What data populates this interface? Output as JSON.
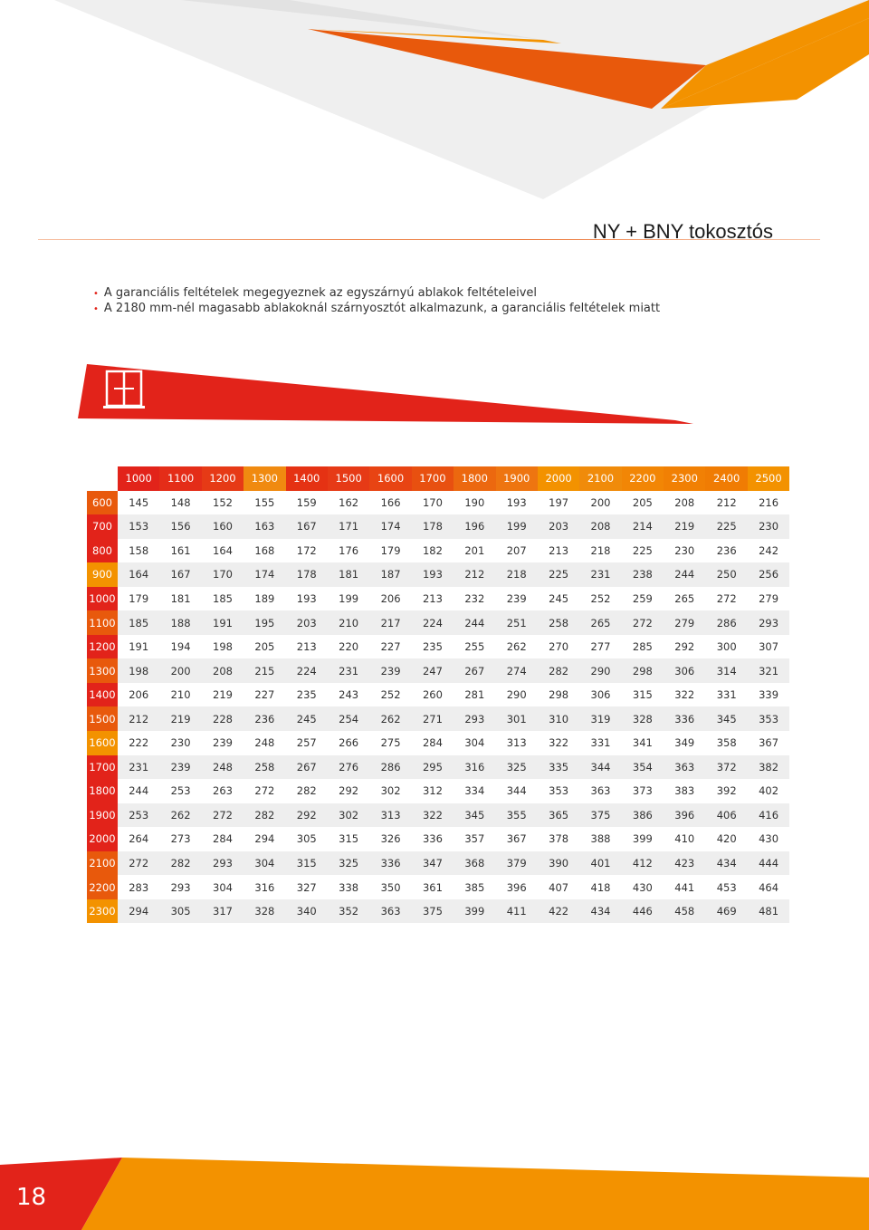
{
  "header": {
    "title": "NY + BNY tokosztós"
  },
  "notes": [
    "A garanciális feltételek megegyeznek az egyszárnyú ablakok feltételeivel",
    "A 2180 mm-nél magasabb ablakoknál szárnyosztót alkalmazunk, a garanciális feltételek miatt"
  ],
  "banner": {
    "icon": "window-sash-divider-icon"
  },
  "colors": {
    "orange": "#f39200",
    "dark_orange": "#e8590c",
    "red": "#e2231a",
    "light_gray": "#eeeeee"
  },
  "table": {
    "col_headers": [
      "1000",
      "1100",
      "1200",
      "1300",
      "1400",
      "1500",
      "1600",
      "1700",
      "1800",
      "1900",
      "2000",
      "2100",
      "2200",
      "2300",
      "2400",
      "2500"
    ],
    "rows": [
      {
        "h": "600",
        "v": [
          "145",
          "148",
          "152",
          "155",
          "159",
          "162",
          "166",
          "170",
          "190",
          "193",
          "197",
          "200",
          "205",
          "208",
          "212",
          "216"
        ]
      },
      {
        "h": "700",
        "v": [
          "153",
          "156",
          "160",
          "163",
          "167",
          "171",
          "174",
          "178",
          "196",
          "199",
          "203",
          "208",
          "214",
          "219",
          "225",
          "230"
        ]
      },
      {
        "h": "800",
        "v": [
          "158",
          "161",
          "164",
          "168",
          "172",
          "176",
          "179",
          "182",
          "201",
          "207",
          "213",
          "218",
          "225",
          "230",
          "236",
          "242"
        ]
      },
      {
        "h": "900",
        "v": [
          "164",
          "167",
          "170",
          "174",
          "178",
          "181",
          "187",
          "193",
          "212",
          "218",
          "225",
          "231",
          "238",
          "244",
          "250",
          "256"
        ]
      },
      {
        "h": "1000",
        "v": [
          "179",
          "181",
          "185",
          "189",
          "193",
          "199",
          "206",
          "213",
          "232",
          "239",
          "245",
          "252",
          "259",
          "265",
          "272",
          "279"
        ]
      },
      {
        "h": "1100",
        "v": [
          "185",
          "188",
          "191",
          "195",
          "203",
          "210",
          "217",
          "224",
          "244",
          "251",
          "258",
          "265",
          "272",
          "279",
          "286",
          "293"
        ]
      },
      {
        "h": "1200",
        "v": [
          "191",
          "194",
          "198",
          "205",
          "213",
          "220",
          "227",
          "235",
          "255",
          "262",
          "270",
          "277",
          "285",
          "292",
          "300",
          "307"
        ]
      },
      {
        "h": "1300",
        "v": [
          "198",
          "200",
          "208",
          "215",
          "224",
          "231",
          "239",
          "247",
          "267",
          "274",
          "282",
          "290",
          "298",
          "306",
          "314",
          "321"
        ]
      },
      {
        "h": "1400",
        "v": [
          "206",
          "210",
          "219",
          "227",
          "235",
          "243",
          "252",
          "260",
          "281",
          "290",
          "298",
          "306",
          "315",
          "322",
          "331",
          "339"
        ]
      },
      {
        "h": "1500",
        "v": [
          "212",
          "219",
          "228",
          "236",
          "245",
          "254",
          "262",
          "271",
          "293",
          "301",
          "310",
          "319",
          "328",
          "336",
          "345",
          "353"
        ]
      },
      {
        "h": "1600",
        "v": [
          "222",
          "230",
          "239",
          "248",
          "257",
          "266",
          "275",
          "284",
          "304",
          "313",
          "322",
          "331",
          "341",
          "349",
          "358",
          "367"
        ]
      },
      {
        "h": "1700",
        "v": [
          "231",
          "239",
          "248",
          "258",
          "267",
          "276",
          "286",
          "295",
          "316",
          "325",
          "335",
          "344",
          "354",
          "363",
          "372",
          "382"
        ]
      },
      {
        "h": "1800",
        "v": [
          "244",
          "253",
          "263",
          "272",
          "282",
          "292",
          "302",
          "312",
          "334",
          "344",
          "353",
          "363",
          "373",
          "383",
          "392",
          "402"
        ]
      },
      {
        "h": "1900",
        "v": [
          "253",
          "262",
          "272",
          "282",
          "292",
          "302",
          "313",
          "322",
          "345",
          "355",
          "365",
          "375",
          "386",
          "396",
          "406",
          "416"
        ]
      },
      {
        "h": "2000",
        "v": [
          "264",
          "273",
          "284",
          "294",
          "305",
          "315",
          "326",
          "336",
          "357",
          "367",
          "378",
          "388",
          "399",
          "410",
          "420",
          "430"
        ]
      },
      {
        "h": "2100",
        "v": [
          "272",
          "282",
          "293",
          "304",
          "315",
          "325",
          "336",
          "347",
          "368",
          "379",
          "390",
          "401",
          "412",
          "423",
          "434",
          "444"
        ]
      },
      {
        "h": "2200",
        "v": [
          "283",
          "293",
          "304",
          "316",
          "327",
          "338",
          "350",
          "361",
          "385",
          "396",
          "407",
          "418",
          "430",
          "441",
          "453",
          "464"
        ]
      },
      {
        "h": "2300",
        "v": [
          "294",
          "305",
          "317",
          "328",
          "340",
          "352",
          "363",
          "375",
          "399",
          "411",
          "422",
          "434",
          "446",
          "458",
          "469",
          "481"
        ]
      }
    ]
  },
  "footer": {
    "page_number": "18"
  }
}
